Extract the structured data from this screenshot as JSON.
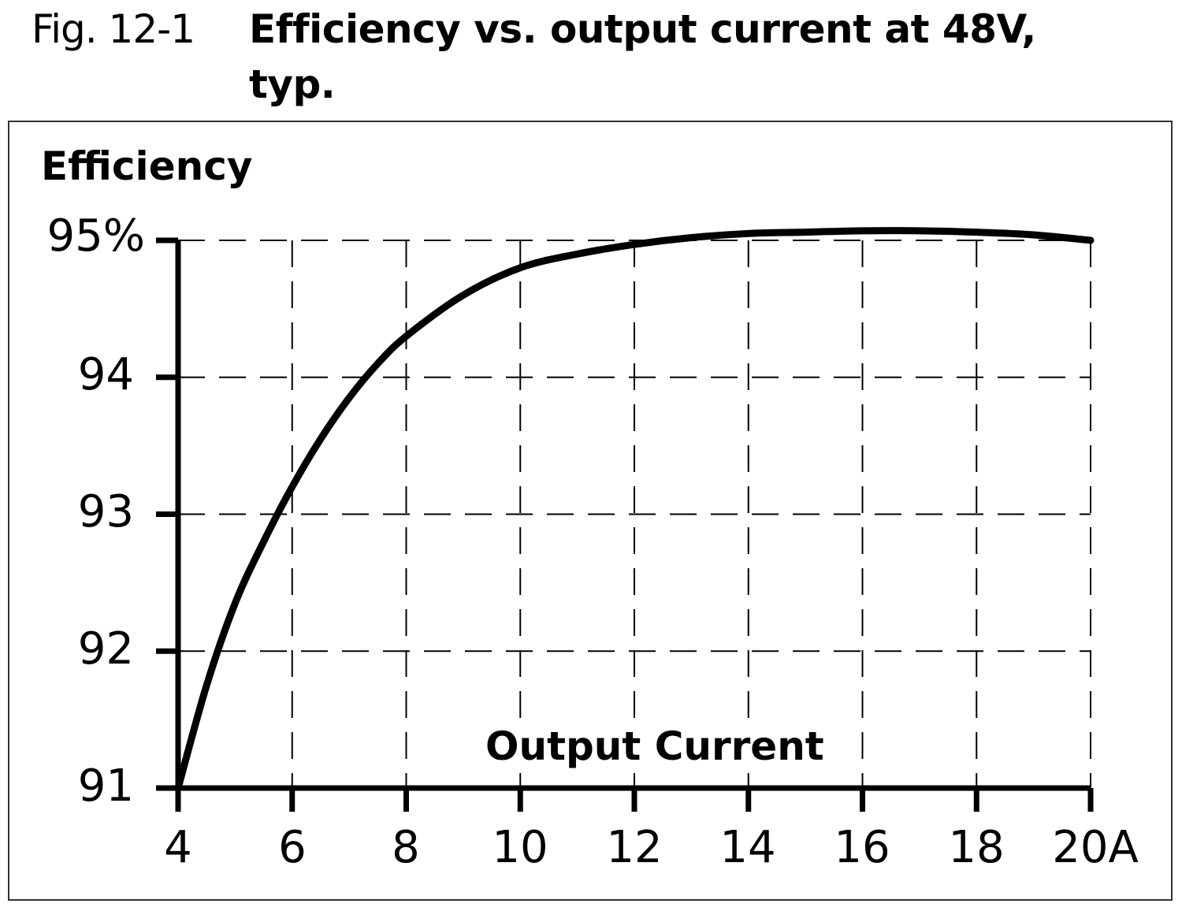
{
  "caption": {
    "label": "Fig. 12-1",
    "title": "Efficiency vs. output current at 48V, typ."
  },
  "axes": {
    "ylabel": "Efficiency",
    "xlabel": "Output Current",
    "yticks": [
      "95%",
      "94",
      "93",
      "92",
      "91"
    ],
    "xticks": [
      "4",
      "6",
      "8",
      "10",
      "12",
      "14",
      "16",
      "18",
      "20A"
    ]
  },
  "colors": {
    "curve": "#000000",
    "grid": "#000000",
    "frame": "#333333",
    "background": "#ffffff"
  },
  "chart_data": {
    "type": "line",
    "title": "Efficiency vs. output current at 48V, typ.",
    "xlabel": "Output Current (A)",
    "ylabel": "Efficiency (%)",
    "xlim": [
      4,
      20
    ],
    "ylim": [
      91,
      95
    ],
    "x_ticks": [
      4,
      6,
      8,
      10,
      12,
      14,
      16,
      18,
      20
    ],
    "y_ticks": [
      91,
      92,
      93,
      94,
      95
    ],
    "grid": true,
    "grid_style": "dashed",
    "legend": null,
    "series": [
      {
        "name": "Efficiency at 48V, typ.",
        "x": [
          4,
          4.5,
          5,
          5.5,
          6,
          6.5,
          7,
          7.5,
          8,
          9,
          10,
          11,
          12,
          13,
          14,
          15,
          16,
          17,
          18,
          19,
          20
        ],
        "values": [
          91.0,
          91.75,
          92.35,
          92.8,
          93.2,
          93.55,
          93.85,
          94.1,
          94.3,
          94.6,
          94.8,
          94.9,
          94.97,
          95.02,
          95.05,
          95.06,
          95.07,
          95.07,
          95.06,
          95.04,
          95.0
        ]
      }
    ]
  }
}
